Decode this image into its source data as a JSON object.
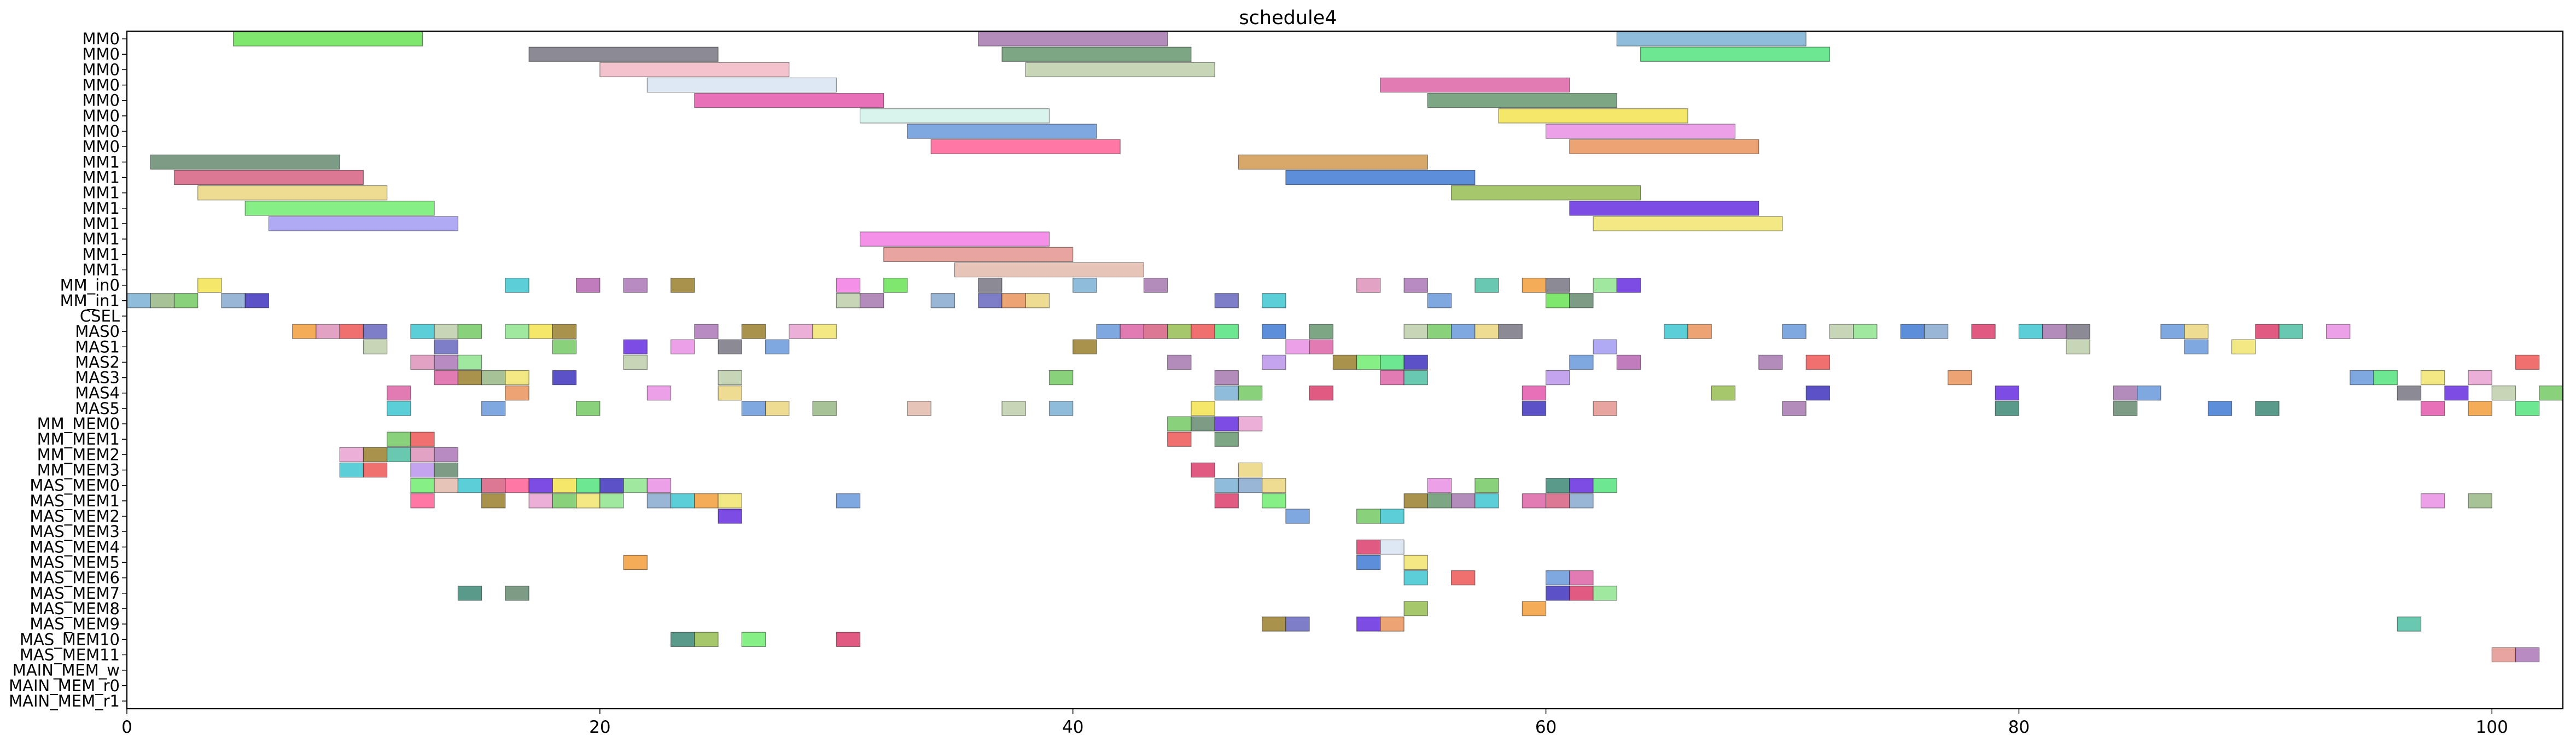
{
  "chart_data": {
    "type": "bar",
    "title": "schedule4",
    "xlabel": "",
    "ylabel": "",
    "xlim": [
      0,
      103
    ],
    "x_ticks": [
      0,
      20,
      40,
      60,
      80,
      100
    ],
    "x_tick_labels": [
      "0",
      "20",
      "40",
      "60",
      "80",
      "100"
    ],
    "grid": false,
    "legend": "none",
    "rows": [
      "MM0",
      "MM0",
      "MM0",
      "MM0",
      "MM0",
      "MM0",
      "MM0",
      "MM0",
      "MM1",
      "MM1",
      "MM1",
      "MM1",
      "MM1",
      "MM1",
      "MM1",
      "MM1",
      "MM_in0",
      "MM_in1",
      "CSEL",
      "MAS0",
      "MAS1",
      "MAS2",
      "MAS3",
      "MAS4",
      "MAS5",
      "MM_MEM0",
      "MM_MEM1",
      "MM_MEM2",
      "MM_MEM3",
      "MAS_MEM0",
      "MAS_MEM1",
      "MAS_MEM2",
      "MAS_MEM3",
      "MAS_MEM4",
      "MAS_MEM5",
      "MAS_MEM6",
      "MAS_MEM7",
      "MAS_MEM8",
      "MAS_MEM9",
      "MAS_MEM10",
      "MAS_MEM11",
      "MAIN_MEM_w",
      "MAIN_MEM_r0",
      "MAIN_MEM_r1"
    ],
    "palette": [
      "#7fe66e",
      "#b48cbc",
      "#8fbcd8",
      "#8c8a94",
      "#7ca684",
      "#6de890",
      "#f4c2cc",
      "#c6d6b6",
      "#dde8f4",
      "#e27bb4",
      "#e2a2c4",
      "#e870b8",
      "#d8f4ec",
      "#f4e76a",
      "#80a8e0",
      "#eca0e8",
      "#ff77a4",
      "#eca474",
      "#7c9c86",
      "#dd7894",
      "#5c8eda",
      "#eedc92",
      "#a6c86a",
      "#86f086",
      "#7c4ce4",
      "#b0aaf4",
      "#f2e884",
      "#f490e8",
      "#e8a49e",
      "#e6c4b8",
      "#d8a86a",
      "#5bcfd8",
      "#c07cbc",
      "#b88cc2",
      "#a8924c",
      "#a6c296",
      "#9ab6d6",
      "#89d17a",
      "#5a52c6",
      "#7e7ec8",
      "#f4ac58",
      "#68c8b0",
      "#e05a82",
      "#5a9a8a",
      "#f07070",
      "#c4a4ec",
      "#ecb0d8",
      "#a0e8a0"
    ],
    "tasks": [
      [
        0,
        4.5,
        12.5,
        0
      ],
      [
        0,
        36,
        44,
        1
      ],
      [
        0,
        63,
        71,
        2
      ],
      [
        1,
        17,
        25,
        3
      ],
      [
        1,
        37,
        45,
        4
      ],
      [
        1,
        64,
        72,
        5
      ],
      [
        2,
        20,
        28,
        6
      ],
      [
        2,
        38,
        46,
        7
      ],
      [
        3,
        22,
        30,
        8
      ],
      [
        3,
        53,
        61,
        9
      ],
      [
        4,
        24,
        32,
        11
      ],
      [
        4,
        55,
        63,
        4
      ],
      [
        5,
        31,
        39,
        12
      ],
      [
        5,
        58,
        66,
        13
      ],
      [
        6,
        33,
        41,
        14
      ],
      [
        6,
        60,
        68,
        15
      ],
      [
        7,
        34,
        42,
        16
      ],
      [
        7,
        61,
        69,
        17
      ],
      [
        8,
        1,
        9,
        18
      ],
      [
        8,
        47,
        55,
        30
      ],
      [
        9,
        2,
        10,
        19
      ],
      [
        9,
        49,
        57,
        20
      ],
      [
        10,
        3,
        11,
        21
      ],
      [
        10,
        56,
        64,
        22
      ],
      [
        11,
        5,
        13,
        23
      ],
      [
        11,
        61,
        69,
        24
      ],
      [
        12,
        6,
        14,
        25
      ],
      [
        12,
        62,
        70,
        26
      ],
      [
        13,
        31,
        39,
        27
      ],
      [
        14,
        32,
        40,
        28
      ],
      [
        15,
        35,
        43,
        29
      ],
      [
        16,
        3,
        4,
        13
      ],
      [
        16,
        16,
        17,
        31
      ],
      [
        16,
        19,
        20,
        32
      ],
      [
        16,
        21,
        22,
        33
      ],
      [
        16,
        23,
        24,
        34
      ],
      [
        16,
        30,
        31,
        27
      ],
      [
        16,
        32,
        33,
        0
      ],
      [
        16,
        36,
        37,
        3
      ],
      [
        16,
        40,
        41,
        2
      ],
      [
        16,
        43,
        44,
        1
      ],
      [
        16,
        52,
        53,
        10
      ],
      [
        16,
        54,
        55,
        33
      ],
      [
        16,
        57,
        58,
        41
      ],
      [
        16,
        59,
        60,
        40
      ],
      [
        16,
        60,
        61,
        3
      ],
      [
        16,
        62,
        63,
        47
      ],
      [
        16,
        63,
        64,
        24
      ],
      [
        17,
        0,
        1,
        2
      ],
      [
        17,
        1,
        2,
        35
      ],
      [
        17,
        2,
        3,
        37
      ],
      [
        17,
        4,
        5,
        36
      ],
      [
        17,
        5,
        6,
        38
      ],
      [
        17,
        30,
        31,
        7
      ],
      [
        17,
        31,
        32,
        1
      ],
      [
        17,
        34,
        35,
        36
      ],
      [
        17,
        36,
        37,
        39
      ],
      [
        17,
        37,
        38,
        17
      ],
      [
        17,
        38,
        39,
        21
      ],
      [
        17,
        46,
        47,
        39
      ],
      [
        17,
        48,
        49,
        31
      ],
      [
        17,
        55,
        56,
        14
      ],
      [
        17,
        60,
        61,
        0
      ],
      [
        17,
        61,
        62,
        18
      ],
      [
        19,
        7,
        8,
        40
      ],
      [
        19,
        8,
        9,
        10
      ],
      [
        19,
        9,
        10,
        44
      ],
      [
        19,
        10,
        11,
        39
      ],
      [
        19,
        12,
        13,
        31
      ],
      [
        19,
        13,
        14,
        7
      ],
      [
        19,
        14,
        15,
        37
      ],
      [
        19,
        16,
        17,
        47
      ],
      [
        19,
        17,
        18,
        13
      ],
      [
        19,
        18,
        19,
        34
      ],
      [
        19,
        24,
        25,
        33
      ],
      [
        19,
        26,
        27,
        34
      ],
      [
        19,
        28,
        29,
        46
      ],
      [
        19,
        29,
        30,
        26
      ],
      [
        19,
        41,
        42,
        14
      ],
      [
        19,
        42,
        43,
        9
      ],
      [
        19,
        43,
        44,
        19
      ],
      [
        19,
        44,
        45,
        22
      ],
      [
        19,
        45,
        46,
        44
      ],
      [
        19,
        46,
        47,
        5
      ],
      [
        19,
        48,
        49,
        20
      ],
      [
        19,
        50,
        51,
        4
      ],
      [
        19,
        54,
        55,
        7
      ],
      [
        19,
        55,
        56,
        37
      ],
      [
        19,
        56,
        57,
        14
      ],
      [
        19,
        57,
        58,
        21
      ],
      [
        19,
        58,
        59,
        3
      ],
      [
        19,
        65,
        66,
        31
      ],
      [
        19,
        66,
        67,
        17
      ],
      [
        19,
        70,
        71,
        14
      ],
      [
        19,
        72,
        73,
        7
      ],
      [
        19,
        73,
        74,
        47
      ],
      [
        19,
        75,
        76,
        20
      ],
      [
        19,
        76,
        77,
        36
      ],
      [
        19,
        78,
        79,
        42
      ],
      [
        19,
        80,
        81,
        31
      ],
      [
        19,
        81,
        82,
        1
      ],
      [
        19,
        82,
        83,
        3
      ],
      [
        19,
        86,
        87,
        14
      ],
      [
        19,
        87,
        88,
        21
      ],
      [
        19,
        90,
        91,
        42
      ],
      [
        19,
        91,
        92,
        41
      ],
      [
        19,
        93,
        94,
        15
      ],
      [
        20,
        10,
        11,
        7
      ],
      [
        20,
        13,
        14,
        39
      ],
      [
        20,
        18,
        19,
        37
      ],
      [
        20,
        21,
        22,
        24
      ],
      [
        20,
        23,
        24,
        15
      ],
      [
        20,
        25,
        26,
        3
      ],
      [
        20,
        27,
        28,
        14
      ],
      [
        20,
        40,
        41,
        34
      ],
      [
        20,
        49,
        50,
        15
      ],
      [
        20,
        50,
        51,
        9
      ],
      [
        20,
        62,
        63,
        25
      ],
      [
        20,
        82,
        83,
        7
      ],
      [
        20,
        87,
        88,
        14
      ],
      [
        20,
        89,
        90,
        26
      ],
      [
        21,
        12,
        13,
        10
      ],
      [
        21,
        13,
        14,
        33
      ],
      [
        21,
        14,
        15,
        47
      ],
      [
        21,
        21,
        22,
        7
      ],
      [
        21,
        44,
        45,
        1
      ],
      [
        21,
        48,
        49,
        45
      ],
      [
        21,
        51,
        52,
        34
      ],
      [
        21,
        52,
        53,
        23
      ],
      [
        21,
        53,
        54,
        5
      ],
      [
        21,
        54,
        55,
        38
      ],
      [
        21,
        61,
        62,
        14
      ],
      [
        21,
        63,
        64,
        32
      ],
      [
        21,
        69,
        70,
        1
      ],
      [
        21,
        71,
        72,
        44
      ],
      [
        21,
        101,
        102,
        44
      ],
      [
        22,
        13,
        14,
        9
      ],
      [
        22,
        14,
        15,
        34
      ],
      [
        22,
        15,
        16,
        35
      ],
      [
        22,
        16,
        17,
        26
      ],
      [
        22,
        18,
        19,
        38
      ],
      [
        22,
        25,
        26,
        7
      ],
      [
        22,
        39,
        40,
        37
      ],
      [
        22,
        46,
        47,
        1
      ],
      [
        22,
        53,
        54,
        9
      ],
      [
        22,
        54,
        55,
        41
      ],
      [
        22,
        60,
        61,
        45
      ],
      [
        22,
        77,
        78,
        17
      ],
      [
        22,
        94,
        95,
        14
      ],
      [
        22,
        95,
        96,
        5
      ],
      [
        22,
        97,
        98,
        26
      ],
      [
        22,
        99,
        100,
        46
      ],
      [
        23,
        11,
        12,
        9
      ],
      [
        23,
        16,
        17,
        17
      ],
      [
        23,
        22,
        23,
        15
      ],
      [
        23,
        25,
        26,
        21
      ],
      [
        23,
        46,
        47,
        2
      ],
      [
        23,
        47,
        48,
        37
      ],
      [
        23,
        50,
        51,
        42
      ],
      [
        23,
        59,
        60,
        11
      ],
      [
        23,
        67,
        68,
        22
      ],
      [
        23,
        71,
        72,
        38
      ],
      [
        23,
        79,
        80,
        24
      ],
      [
        23,
        84,
        85,
        1
      ],
      [
        23,
        85,
        86,
        14
      ],
      [
        23,
        96,
        97,
        3
      ],
      [
        23,
        98,
        99,
        24
      ],
      [
        23,
        100,
        101,
        7
      ],
      [
        23,
        102,
        103,
        37
      ],
      [
        24,
        11,
        12,
        31
      ],
      [
        24,
        15,
        16,
        14
      ],
      [
        24,
        19,
        20,
        37
      ],
      [
        24,
        26,
        27,
        14
      ],
      [
        24,
        27,
        28,
        21
      ],
      [
        24,
        29,
        30,
        35
      ],
      [
        24,
        33,
        34,
        29
      ],
      [
        24,
        37,
        38,
        7
      ],
      [
        24,
        39,
        40,
        2
      ],
      [
        24,
        45,
        46,
        13
      ],
      [
        24,
        59,
        60,
        38
      ],
      [
        24,
        62,
        63,
        28
      ],
      [
        24,
        70,
        71,
        1
      ],
      [
        24,
        79,
        80,
        43
      ],
      [
        24,
        84,
        85,
        18
      ],
      [
        24,
        88,
        89,
        20
      ],
      [
        24,
        90,
        91,
        43
      ],
      [
        24,
        97,
        98,
        11
      ],
      [
        24,
        99,
        100,
        40
      ],
      [
        24,
        101,
        102,
        5
      ],
      [
        25,
        44,
        45,
        37
      ],
      [
        25,
        45,
        46,
        18
      ],
      [
        25,
        46,
        47,
        24
      ],
      [
        25,
        47,
        48,
        46
      ],
      [
        26,
        11,
        12,
        37
      ],
      [
        26,
        12,
        13,
        44
      ],
      [
        26,
        44,
        45,
        44
      ],
      [
        26,
        46,
        47,
        4
      ],
      [
        27,
        9,
        10,
        46
      ],
      [
        27,
        10,
        11,
        34
      ],
      [
        27,
        11,
        12,
        41
      ],
      [
        27,
        12,
        13,
        10
      ],
      [
        27,
        13,
        14,
        33
      ],
      [
        28,
        9,
        10,
        31
      ],
      [
        28,
        10,
        11,
        44
      ],
      [
        28,
        12,
        13,
        45
      ],
      [
        28,
        13,
        14,
        18
      ],
      [
        28,
        45,
        46,
        42
      ],
      [
        28,
        47,
        48,
        21
      ],
      [
        29,
        12,
        13,
        23
      ],
      [
        29,
        13,
        14,
        29
      ],
      [
        29,
        14,
        15,
        31
      ],
      [
        29,
        15,
        16,
        19
      ],
      [
        29,
        16,
        17,
        16
      ],
      [
        29,
        17,
        18,
        24
      ],
      [
        29,
        18,
        19,
        13
      ],
      [
        29,
        19,
        20,
        5
      ],
      [
        29,
        20,
        21,
        38
      ],
      [
        29,
        21,
        22,
        47
      ],
      [
        29,
        22,
        23,
        15
      ],
      [
        29,
        46,
        47,
        2
      ],
      [
        29,
        47,
        48,
        36
      ],
      [
        29,
        48,
        49,
        21
      ],
      [
        29,
        55,
        56,
        15
      ],
      [
        29,
        57,
        58,
        37
      ],
      [
        29,
        60,
        61,
        43
      ],
      [
        29,
        61,
        62,
        24
      ],
      [
        29,
        62,
        63,
        5
      ],
      [
        30,
        12,
        13,
        16
      ],
      [
        30,
        15,
        16,
        34
      ],
      [
        30,
        17,
        18,
        46
      ],
      [
        30,
        18,
        19,
        37
      ],
      [
        30,
        19,
        20,
        26
      ],
      [
        30,
        20,
        21,
        47
      ],
      [
        30,
        22,
        23,
        36
      ],
      [
        30,
        23,
        24,
        31
      ],
      [
        30,
        24,
        25,
        40
      ],
      [
        30,
        25,
        26,
        26
      ],
      [
        30,
        30,
        31,
        14
      ],
      [
        30,
        46,
        47,
        42
      ],
      [
        30,
        48,
        49,
        23
      ],
      [
        30,
        54,
        55,
        34
      ],
      [
        30,
        55,
        56,
        4
      ],
      [
        30,
        56,
        57,
        1
      ],
      [
        30,
        57,
        58,
        31
      ],
      [
        30,
        59,
        60,
        9
      ],
      [
        30,
        60,
        61,
        19
      ],
      [
        30,
        61,
        62,
        36
      ],
      [
        30,
        97,
        98,
        15
      ],
      [
        30,
        99,
        100,
        35
      ],
      [
        31,
        25,
        26,
        24
      ],
      [
        31,
        49,
        50,
        14
      ],
      [
        31,
        52,
        53,
        37
      ],
      [
        31,
        53,
        54,
        31
      ],
      [
        33,
        52,
        53,
        42
      ],
      [
        33,
        53,
        54,
        8
      ],
      [
        34,
        21,
        22,
        40
      ],
      [
        34,
        52,
        53,
        20
      ],
      [
        34,
        54,
        55,
        26
      ],
      [
        35,
        54,
        55,
        31
      ],
      [
        35,
        56,
        57,
        44
      ],
      [
        35,
        60,
        61,
        14
      ],
      [
        35,
        61,
        62,
        9
      ],
      [
        36,
        14,
        15,
        43
      ],
      [
        36,
        16,
        17,
        18
      ],
      [
        36,
        60,
        61,
        38
      ],
      [
        36,
        61,
        62,
        42
      ],
      [
        36,
        62,
        63,
        47
      ],
      [
        37,
        54,
        55,
        22
      ],
      [
        37,
        59,
        60,
        40
      ],
      [
        38,
        48,
        49,
        34
      ],
      [
        38,
        49,
        50,
        39
      ],
      [
        38,
        52,
        53,
        24
      ],
      [
        38,
        53,
        54,
        17
      ],
      [
        38,
        96,
        97,
        41
      ],
      [
        39,
        23,
        24,
        43
      ],
      [
        39,
        24,
        25,
        22
      ],
      [
        39,
        26,
        27,
        23
      ],
      [
        39,
        30,
        31,
        42
      ],
      [
        40,
        100,
        101,
        28
      ],
      [
        40,
        101,
        102,
        33
      ]
    ]
  }
}
